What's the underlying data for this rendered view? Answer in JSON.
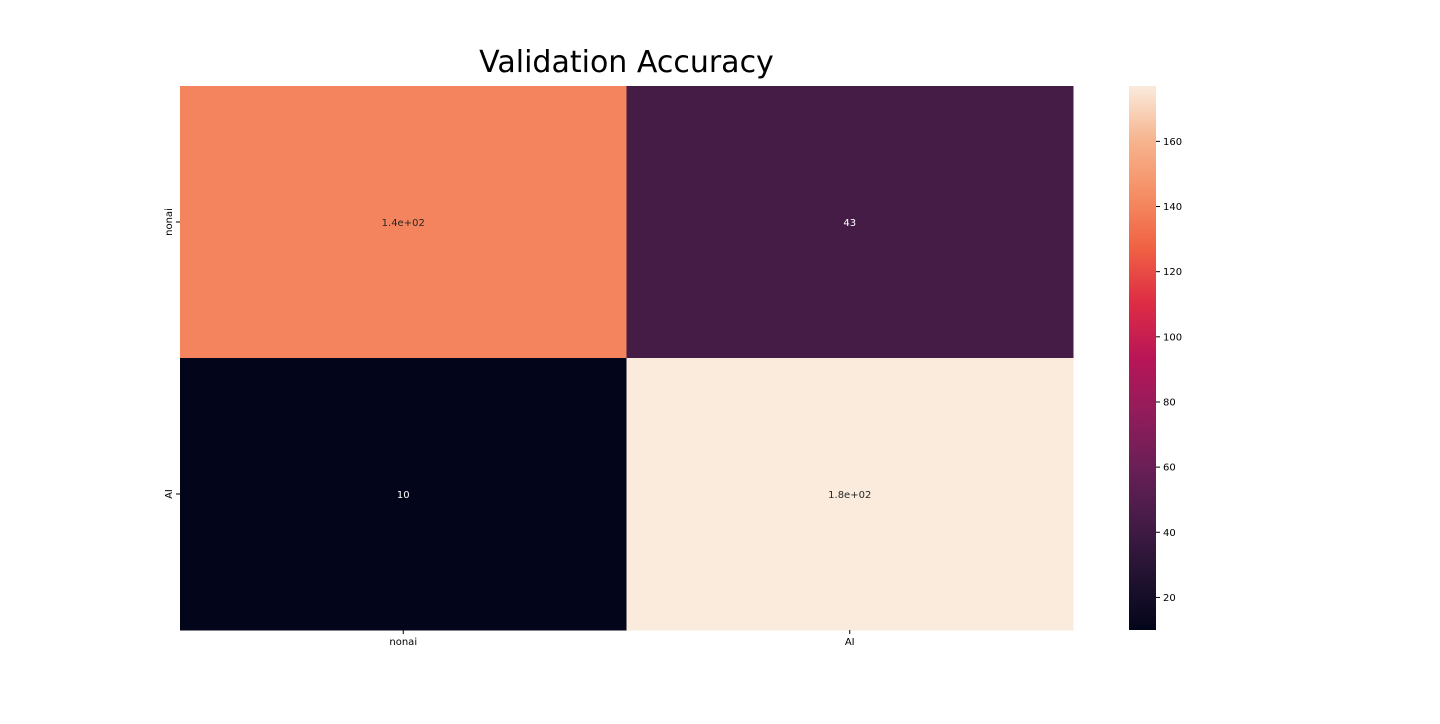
{
  "chart_data": {
    "type": "heatmap",
    "title": "Validation Accuracy",
    "x_categories": [
      "nonai",
      "AI"
    ],
    "y_categories": [
      "nonai",
      "AI"
    ],
    "values": [
      [
        140,
        43
      ],
      [
        10,
        177
      ]
    ],
    "annotations": [
      [
        "1.4e+02",
        "43"
      ],
      [
        "10",
        "1.8e+02"
      ]
    ],
    "colormap": "rocket",
    "colorbar": {
      "min": 10,
      "max": 177,
      "ticks": [
        20,
        40,
        60,
        80,
        100,
        120,
        140,
        160
      ]
    },
    "xlabel": "",
    "ylabel": "",
    "grid": false
  }
}
